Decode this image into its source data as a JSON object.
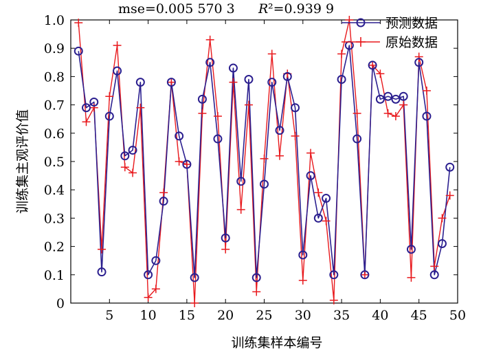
{
  "chart_data": {
    "type": "line",
    "annotation_mse": "mse=0.005 570 3",
    "annotation_r2_symbol": "R",
    "annotation_r2_value": "²=0.939 9",
    "xlabel": "训练集样本编号",
    "ylabel": "训练集主观评价值",
    "xlim": [
      0,
      50
    ],
    "ylim": [
      0,
      1.0
    ],
    "x_ticks": [
      5,
      10,
      15,
      20,
      25,
      30,
      35,
      40,
      45,
      50
    ],
    "y_ticks": [
      0,
      0.1,
      0.2,
      0.3,
      0.4,
      0.5,
      0.6,
      0.7,
      0.8,
      0.9,
      1.0
    ],
    "x_tick_labels": [
      "5",
      "10",
      "15",
      "20",
      "25",
      "30",
      "35",
      "40",
      "45",
      "50"
    ],
    "y_tick_labels": [
      "0",
      "0.1",
      "0.2",
      "0.3",
      "0.4",
      "0.5",
      "0.6",
      "0.7",
      "0.8",
      "0.9",
      "1.0"
    ],
    "legend_position": "top-right",
    "series": [
      {
        "name": "预测数据",
        "color": "#2b1f8f",
        "marker": "circle",
        "x": [
          1,
          2,
          3,
          4,
          5,
          6,
          7,
          8,
          9,
          10,
          11,
          12,
          13,
          14,
          15,
          16,
          17,
          18,
          19,
          20,
          21,
          22,
          23,
          24,
          25,
          26,
          27,
          28,
          29,
          30,
          31,
          32,
          33,
          34,
          35,
          36,
          37,
          38,
          39,
          40,
          41,
          42,
          43,
          44,
          45,
          46,
          47,
          48,
          49
        ],
        "values": [
          0.89,
          0.69,
          0.71,
          0.11,
          0.66,
          0.82,
          0.52,
          0.54,
          0.78,
          0.1,
          0.15,
          0.36,
          0.78,
          0.59,
          0.49,
          0.09,
          0.72,
          0.85,
          0.58,
          0.23,
          0.83,
          0.43,
          0.79,
          0.09,
          0.42,
          0.78,
          0.61,
          0.8,
          0.69,
          0.17,
          0.45,
          0.3,
          0.37,
          0.1,
          0.79,
          0.91,
          0.58,
          0.1,
          0.84,
          0.72,
          0.73,
          0.72,
          0.73,
          0.19,
          0.85,
          0.66,
          0.1,
          0.21,
          0.48
        ]
      },
      {
        "name": "原始数据",
        "color": "#e8181c",
        "marker": "plus",
        "x": [
          1,
          2,
          3,
          4,
          5,
          6,
          7,
          8,
          9,
          10,
          11,
          12,
          13,
          14,
          15,
          16,
          17,
          18,
          19,
          20,
          21,
          22,
          23,
          24,
          25,
          26,
          27,
          28,
          29,
          30,
          31,
          32,
          33,
          34,
          35,
          36,
          37,
          38,
          39,
          40,
          41,
          42,
          43,
          44,
          45,
          46,
          47,
          48,
          49
        ],
        "values": [
          0.99,
          0.64,
          0.69,
          0.19,
          0.73,
          0.91,
          0.48,
          0.46,
          0.69,
          0.02,
          0.05,
          0.39,
          0.78,
          0.5,
          0.49,
          0.0,
          0.67,
          0.93,
          0.66,
          0.19,
          0.78,
          0.33,
          0.7,
          0.04,
          0.51,
          0.88,
          0.52,
          0.81,
          0.59,
          0.08,
          0.53,
          0.39,
          0.29,
          0.01,
          0.88,
          1.0,
          0.67,
          0.1,
          0.84,
          0.81,
          0.67,
          0.66,
          0.7,
          0.09,
          0.87,
          0.75,
          0.13,
          0.3,
          0.38
        ]
      }
    ]
  }
}
